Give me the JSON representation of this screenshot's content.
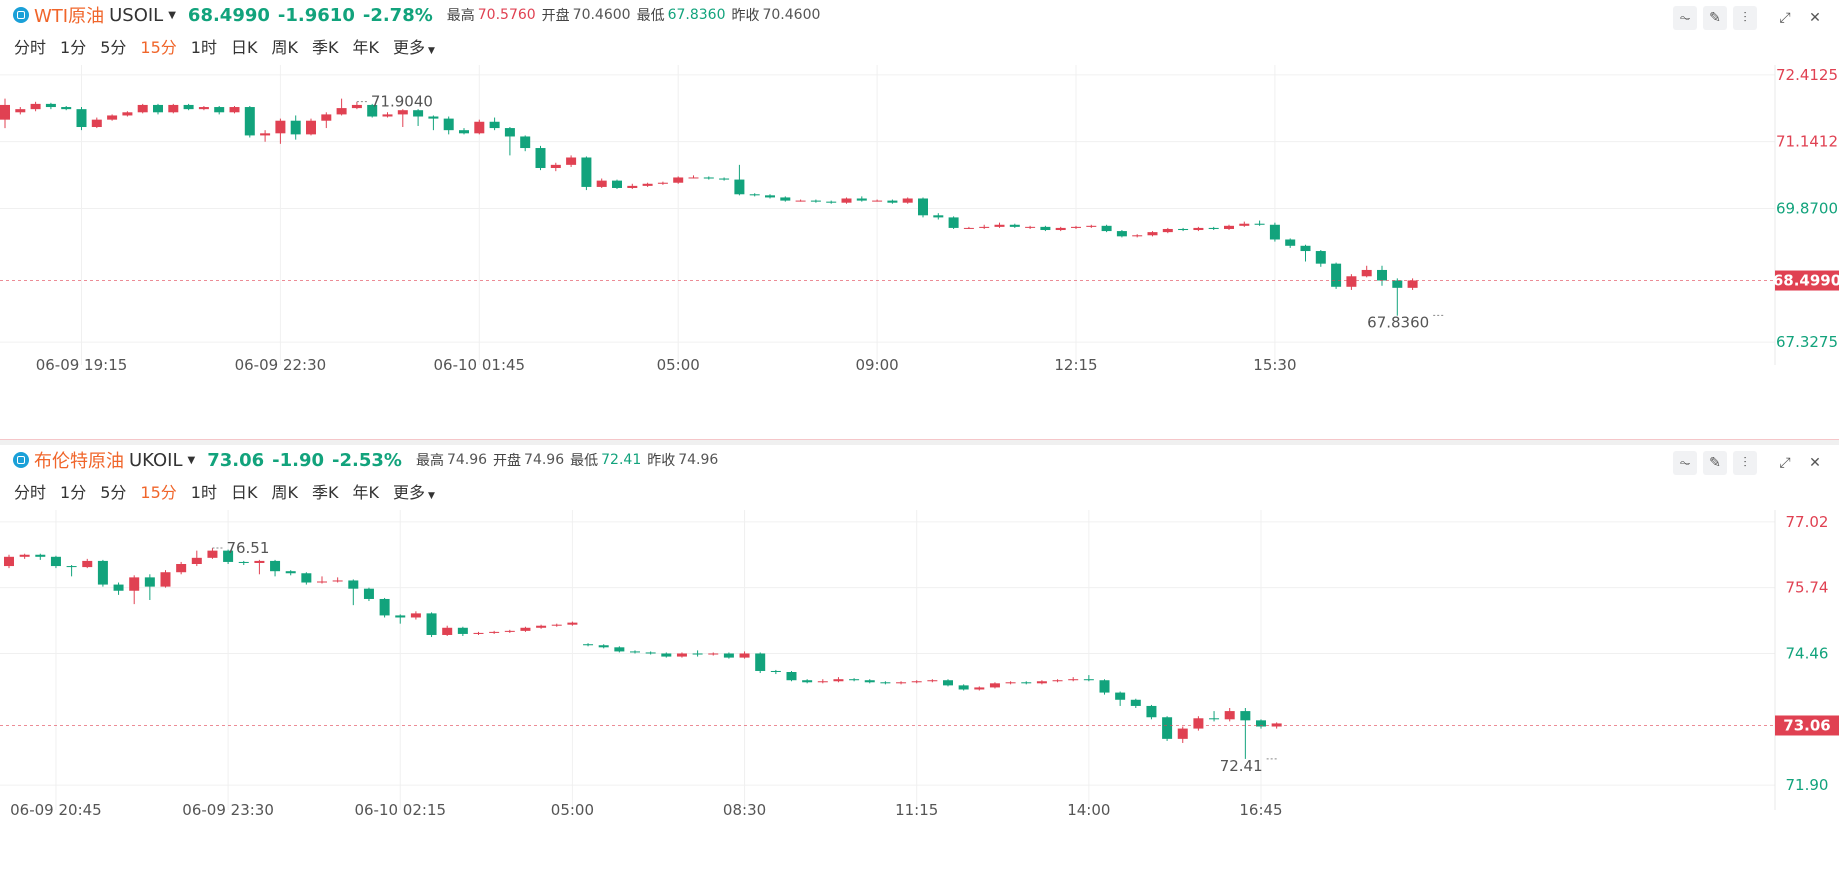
{
  "panels": [
    {
      "symbol_name": "WTI原油",
      "symbol_code": "USOIL",
      "price": "68.4990",
      "change": "-1.9610",
      "change_pct": "-2.78%",
      "stats": [
        {
          "label": "最高",
          "value": "70.5760",
          "trend": "up"
        },
        {
          "label": "开盘",
          "value": "70.4600",
          "trend": "neutral"
        },
        {
          "label": "最低",
          "value": "67.8360",
          "trend": "down"
        },
        {
          "label": "昨收",
          "value": "70.4600",
          "trend": "neutral"
        }
      ],
      "timeframes": [
        "分时",
        "1分",
        "5分",
        "15分",
        "1时",
        "日K",
        "周K",
        "季K",
        "年K"
      ],
      "active_timeframe": "15分",
      "more_label": "更多"
    },
    {
      "symbol_name": "布伦特原油",
      "symbol_code": "UKOIL",
      "price": "73.06",
      "change": "-1.90",
      "change_pct": "-2.53%",
      "stats": [
        {
          "label": "最高",
          "value": "74.96",
          "trend": "up"
        },
        {
          "label": "开盘",
          "value": "74.96",
          "trend": "neutral"
        },
        {
          "label": "最低",
          "value": "72.41",
          "trend": "down"
        },
        {
          "label": "昨收",
          "value": "74.96",
          "trend": "neutral"
        }
      ],
      "timeframes": [
        "分时",
        "1分",
        "5分",
        "15分",
        "1时",
        "日K",
        "周K",
        "季K",
        "年K"
      ],
      "active_timeframe": "15分",
      "more_label": "更多"
    }
  ],
  "toolbar_icons": [
    "indicator-icon",
    "draw-icon",
    "candle-style-icon",
    "expand-icon",
    "close-icon"
  ],
  "colors": {
    "up": "#e04152",
    "down": "#12a37c",
    "accent": "#f0652a",
    "grid": "#f0f0f0"
  },
  "chart_data": [
    {
      "type": "candlestick",
      "title": "WTI原油 USOIL 15分",
      "y_ticks": [
        "72.4125",
        "71.1412",
        "69.8700",
        "67.3275"
      ],
      "y_tick_values": [
        72.4125,
        71.1412,
        69.87,
        67.3275
      ],
      "y_tick_colors": [
        "up",
        "up",
        "down",
        "down"
      ],
      "ylim": [
        67.12,
        72.6
      ],
      "last_price_label": "68.4990",
      "last_price": 68.499,
      "x_ticks": [
        "06-09 19:15",
        "06-09 22:30",
        "06-10 01:45",
        "05:00",
        "09:00",
        "12:15",
        "15:30"
      ],
      "x_tick_indices": [
        5,
        18,
        31,
        44,
        57,
        70,
        83
      ],
      "high_annotation": {
        "label": "71.9040",
        "index": 23,
        "value": 71.904
      },
      "low_annotation": {
        "label": "67.8360",
        "index": 94,
        "value": 67.836
      },
      "candles": [
        [
          71.56,
          71.84,
          71.96,
          71.4
        ],
        [
          71.7,
          71.76,
          71.8,
          71.66
        ],
        [
          71.76,
          71.86,
          71.9,
          71.72
        ],
        [
          71.86,
          71.8,
          71.88,
          71.76
        ],
        [
          71.8,
          71.76,
          71.82,
          71.74
        ],
        [
          71.76,
          71.42,
          71.8,
          71.36
        ],
        [
          71.42,
          71.56,
          71.6,
          71.4
        ],
        [
          71.56,
          71.64,
          71.66,
          71.54
        ],
        [
          71.64,
          71.7,
          71.72,
          71.62
        ],
        [
          71.7,
          71.84,
          71.86,
          71.68
        ],
        [
          71.84,
          71.7,
          71.86,
          71.66
        ],
        [
          71.7,
          71.84,
          71.86,
          71.68
        ],
        [
          71.84,
          71.76,
          71.86,
          71.74
        ],
        [
          71.76,
          71.8,
          71.82,
          71.74
        ],
        [
          71.8,
          71.7,
          71.82,
          71.66
        ],
        [
          71.7,
          71.8,
          71.82,
          71.68
        ],
        [
          71.8,
          71.26,
          71.82,
          71.22
        ],
        [
          71.26,
          71.3,
          71.36,
          71.14
        ],
        [
          71.3,
          71.54,
          71.58,
          71.1
        ],
        [
          71.54,
          71.28,
          71.64,
          71.18
        ],
        [
          71.28,
          71.54,
          71.58,
          71.26
        ],
        [
          71.54,
          71.66,
          71.7,
          71.4
        ],
        [
          71.66,
          71.78,
          71.96,
          71.64
        ],
        [
          71.78,
          71.84,
          71.9,
          71.76
        ],
        [
          71.84,
          71.62,
          71.86,
          71.6
        ],
        [
          71.62,
          71.66,
          71.7,
          71.6
        ],
        [
          71.66,
          71.74,
          71.76,
          71.42
        ],
        [
          71.74,
          71.62,
          71.76,
          71.44
        ],
        [
          71.62,
          71.58,
          71.64,
          71.36
        ],
        [
          71.58,
          71.36,
          71.62,
          71.28
        ],
        [
          71.36,
          71.3,
          71.4,
          71.28
        ],
        [
          71.3,
          71.52,
          71.56,
          71.28
        ],
        [
          71.52,
          71.4,
          71.6,
          71.36
        ],
        [
          71.4,
          71.24,
          71.42,
          70.88
        ],
        [
          71.24,
          71.02,
          71.26,
          70.96
        ],
        [
          71.02,
          70.64,
          71.06,
          70.6
        ],
        [
          70.64,
          70.7,
          70.74,
          70.58
        ],
        [
          70.7,
          70.84,
          70.88,
          70.66
        ],
        [
          70.84,
          70.28,
          70.86,
          70.22
        ],
        [
          70.28,
          70.4,
          70.44,
          70.26
        ],
        [
          70.4,
          70.26,
          70.42,
          70.24
        ],
        [
          70.26,
          70.3,
          70.34,
          70.24
        ],
        [
          70.3,
          70.34,
          70.36,
          70.28
        ],
        [
          70.34,
          70.36,
          70.38,
          70.32
        ],
        [
          70.36,
          70.46,
          70.48,
          70.34
        ],
        [
          70.46,
          70.46,
          70.5,
          70.44
        ],
        [
          70.46,
          70.44,
          70.48,
          70.42
        ],
        [
          70.44,
          70.42,
          70.46,
          70.4
        ],
        [
          70.42,
          70.14,
          70.7,
          70.12
        ],
        [
          70.14,
          70.12,
          70.16,
          70.1
        ],
        [
          70.12,
          70.08,
          70.14,
          70.06
        ],
        [
          70.08,
          70.02,
          70.1,
          70.0
        ],
        [
          70.02,
          70.02,
          70.04,
          70.0
        ],
        [
          70.02,
          70.0,
          70.04,
          69.98
        ],
        [
          70.0,
          69.98,
          70.02,
          69.96
        ],
        [
          69.98,
          70.06,
          70.08,
          69.96
        ],
        [
          70.06,
          70.02,
          70.1,
          70.0
        ],
        [
          70.02,
          70.02,
          70.04,
          70.0
        ],
        [
          70.02,
          69.98,
          70.04,
          69.96
        ],
        [
          69.98,
          70.06,
          70.08,
          69.96
        ],
        [
          70.06,
          69.74,
          70.08,
          69.7
        ],
        [
          69.74,
          69.7,
          69.78,
          69.66
        ],
        [
          69.7,
          69.5,
          69.72,
          69.48
        ],
        [
          69.5,
          69.5,
          69.52,
          69.48
        ],
        [
          69.5,
          69.52,
          69.56,
          69.48
        ],
        [
          69.52,
          69.56,
          69.6,
          69.5
        ],
        [
          69.56,
          69.52,
          69.58,
          69.5
        ],
        [
          69.52,
          69.52,
          69.54,
          69.48
        ],
        [
          69.52,
          69.46,
          69.54,
          69.44
        ],
        [
          69.46,
          69.5,
          69.52,
          69.44
        ],
        [
          69.5,
          69.52,
          69.54,
          69.48
        ],
        [
          69.52,
          69.54,
          69.56,
          69.5
        ],
        [
          69.54,
          69.44,
          69.56,
          69.42
        ],
        [
          69.44,
          69.34,
          69.46,
          69.32
        ],
        [
          69.34,
          69.36,
          69.38,
          69.32
        ],
        [
          69.36,
          69.42,
          69.44,
          69.34
        ],
        [
          69.42,
          69.48,
          69.5,
          69.4
        ],
        [
          69.48,
          69.46,
          69.5,
          69.44
        ],
        [
          69.46,
          69.5,
          69.52,
          69.44
        ],
        [
          69.5,
          69.48,
          69.52,
          69.46
        ],
        [
          69.48,
          69.54,
          69.56,
          69.46
        ],
        [
          69.54,
          69.58,
          69.62,
          69.52
        ],
        [
          69.58,
          69.56,
          69.64,
          69.54
        ],
        [
          69.56,
          69.28,
          69.6,
          69.24
        ],
        [
          69.28,
          69.16,
          69.3,
          69.12
        ],
        [
          69.16,
          69.06,
          69.18,
          68.86
        ],
        [
          69.06,
          68.82,
          69.08,
          68.76
        ],
        [
          68.82,
          68.38,
          68.84,
          68.34
        ],
        [
          68.38,
          68.58,
          68.62,
          68.32
        ],
        [
          68.58,
          68.7,
          68.78,
          68.56
        ],
        [
          68.7,
          68.5,
          68.78,
          68.4
        ],
        [
          68.5,
          68.36,
          68.54,
          67.83
        ],
        [
          68.36,
          68.5,
          68.54,
          68.32
        ]
      ]
    },
    {
      "type": "candlestick",
      "title": "布伦特原油 UKOIL 15分",
      "y_ticks": [
        "77.02",
        "75.74",
        "74.46",
        "71.90"
      ],
      "y_tick_values": [
        77.02,
        75.74,
        74.46,
        71.9
      ],
      "y_tick_colors": [
        "up",
        "up",
        "down",
        "down"
      ],
      "ylim": [
        71.65,
        77.25
      ],
      "last_price_label": "73.06",
      "last_price": 73.06,
      "x_ticks": [
        "06-09 20:45",
        "06-09 23:30",
        "06-10 02:15",
        "05:00",
        "08:30",
        "11:15",
        "14:00",
        "16:45"
      ],
      "x_tick_indices": [
        3,
        14,
        25,
        36,
        47,
        58,
        69,
        80
      ],
      "high_annotation": {
        "label": "76.51",
        "index": 13,
        "value": 76.51
      },
      "low_annotation": {
        "label": "72.41",
        "index": 81,
        "value": 72.41
      },
      "candles": [
        [
          76.16,
          76.34,
          76.38,
          76.12
        ],
        [
          76.34,
          76.38,
          76.4,
          76.3
        ],
        [
          76.38,
          76.34,
          76.4,
          76.28
        ],
        [
          76.34,
          76.16,
          76.36,
          76.12
        ],
        [
          76.16,
          76.14,
          76.18,
          75.96
        ],
        [
          76.14,
          76.26,
          76.3,
          76.12
        ],
        [
          76.26,
          75.8,
          76.28,
          75.76
        ],
        [
          75.8,
          75.68,
          75.84,
          75.6
        ],
        [
          75.68,
          75.94,
          75.98,
          75.42
        ],
        [
          75.94,
          75.76,
          76.0,
          75.5
        ],
        [
          75.76,
          76.04,
          76.08,
          75.74
        ],
        [
          76.04,
          76.2,
          76.24,
          76.0
        ],
        [
          76.2,
          76.32,
          76.46,
          76.16
        ],
        [
          76.32,
          76.46,
          76.51,
          76.3
        ],
        [
          76.46,
          76.24,
          76.48,
          76.2
        ],
        [
          76.24,
          76.22,
          76.26,
          76.18
        ],
        [
          76.22,
          76.26,
          76.28,
          76.0
        ],
        [
          76.26,
          76.06,
          76.28,
          75.96
        ],
        [
          76.06,
          76.02,
          76.08,
          75.98
        ],
        [
          76.02,
          75.84,
          76.04,
          75.8
        ],
        [
          75.84,
          75.86,
          75.96,
          75.82
        ],
        [
          75.86,
          75.88,
          75.94,
          75.84
        ],
        [
          75.88,
          75.72,
          75.9,
          75.4
        ],
        [
          75.72,
          75.52,
          75.74,
          75.48
        ],
        [
          75.52,
          75.2,
          75.54,
          75.16
        ],
        [
          75.2,
          75.16,
          75.22,
          75.04
        ],
        [
          75.16,
          75.24,
          75.28,
          75.12
        ],
        [
          75.24,
          74.82,
          75.26,
          74.78
        ],
        [
          74.82,
          74.96,
          75.0,
          74.8
        ],
        [
          74.96,
          74.84,
          74.98,
          74.8
        ],
        [
          74.84,
          74.86,
          74.88,
          74.82
        ],
        [
          74.86,
          74.88,
          74.9,
          74.84
        ],
        [
          74.88,
          74.9,
          74.92,
          74.86
        ],
        [
          74.9,
          74.96,
          74.98,
          74.88
        ],
        [
          74.96,
          75.0,
          75.02,
          74.94
        ],
        [
          75.0,
          75.02,
          75.04,
          74.98
        ],
        [
          75.02,
          75.06,
          75.08,
          75.0
        ],
        [
          74.64,
          74.62,
          74.66,
          74.6
        ],
        [
          74.62,
          74.58,
          74.64,
          74.56
        ],
        [
          74.58,
          74.5,
          74.6,
          74.48
        ],
        [
          74.5,
          74.48,
          74.52,
          74.46
        ],
        [
          74.48,
          74.46,
          74.5,
          74.44
        ],
        [
          74.46,
          74.4,
          74.48,
          74.38
        ],
        [
          74.4,
          74.46,
          74.48,
          74.38
        ],
        [
          74.46,
          74.44,
          74.52,
          74.4
        ],
        [
          74.44,
          74.46,
          74.48,
          74.42
        ],
        [
          74.46,
          74.38,
          74.48,
          74.36
        ],
        [
          74.38,
          74.46,
          74.5,
          74.36
        ],
        [
          74.46,
          74.12,
          74.48,
          74.08
        ],
        [
          74.12,
          74.1,
          74.14,
          74.06
        ],
        [
          74.1,
          73.94,
          74.12,
          73.92
        ],
        [
          73.94,
          73.9,
          73.96,
          73.88
        ],
        [
          73.9,
          73.92,
          73.96,
          73.88
        ],
        [
          73.92,
          73.96,
          74.0,
          73.9
        ],
        [
          73.96,
          73.94,
          73.98,
          73.92
        ],
        [
          73.94,
          73.9,
          73.96,
          73.88
        ],
        [
          73.9,
          73.88,
          73.92,
          73.86
        ],
        [
          73.88,
          73.9,
          73.92,
          73.86
        ],
        [
          73.9,
          73.92,
          73.94,
          73.88
        ],
        [
          73.92,
          73.94,
          73.96,
          73.9
        ],
        [
          73.94,
          73.84,
          73.96,
          73.82
        ],
        [
          73.84,
          73.76,
          73.86,
          73.74
        ],
        [
          73.76,
          73.8,
          73.82,
          73.74
        ],
        [
          73.8,
          73.88,
          73.9,
          73.78
        ],
        [
          73.88,
          73.9,
          73.92,
          73.86
        ],
        [
          73.9,
          73.88,
          73.92,
          73.86
        ],
        [
          73.88,
          73.92,
          73.94,
          73.86
        ],
        [
          73.92,
          73.94,
          73.96,
          73.9
        ],
        [
          73.94,
          73.96,
          74.0,
          73.92
        ],
        [
          73.96,
          73.94,
          74.04,
          73.92
        ],
        [
          73.94,
          73.7,
          73.96,
          73.66
        ],
        [
          73.7,
          73.56,
          73.72,
          73.44
        ],
        [
          73.56,
          73.44,
          73.58,
          73.4
        ],
        [
          73.44,
          73.22,
          73.46,
          73.18
        ],
        [
          73.22,
          72.8,
          73.24,
          72.76
        ],
        [
          72.8,
          73.0,
          73.04,
          72.72
        ],
        [
          73.0,
          73.2,
          73.24,
          72.96
        ],
        [
          73.2,
          73.18,
          73.34,
          73.14
        ],
        [
          73.18,
          73.34,
          73.4,
          73.14
        ],
        [
          73.34,
          73.16,
          73.4,
          72.41
        ],
        [
          73.16,
          73.04,
          73.18,
          73.0
        ],
        [
          73.04,
          73.1,
          73.12,
          73.0
        ]
      ]
    }
  ]
}
